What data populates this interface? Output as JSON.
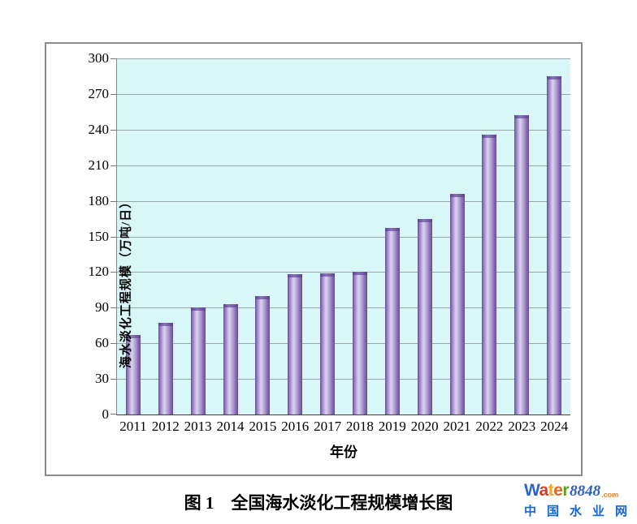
{
  "figure": {
    "caption": "图 1　全国海水淡化工程规模增长图"
  },
  "chart_data": {
    "type": "bar",
    "title": "",
    "categories": [
      "2011",
      "2012",
      "2013",
      "2014",
      "2015",
      "2016",
      "2017",
      "2018",
      "2019",
      "2020",
      "2021",
      "2022",
      "2023",
      "2024"
    ],
    "values": [
      67,
      77,
      90,
      93,
      100,
      118,
      119,
      120,
      157,
      165,
      186,
      236,
      252,
      285
    ],
    "xlabel": "年份",
    "ylabel": "海水淡化工程规模（万吨/日）",
    "ylim": [
      0,
      300
    ],
    "yticks": [
      0,
      30,
      60,
      90,
      120,
      150,
      180,
      210,
      240,
      270,
      300
    ],
    "grid": true,
    "legend": false,
    "colors": {
      "plot_background": "#d9f7f8",
      "gridline": "#98a8a8",
      "bar_dark": "#684e9c",
      "bar_mid": "#9b84c4",
      "bar_light": "#ddd3f0",
      "axis": "#3f3f3f"
    }
  },
  "watermark": {
    "line1_letters": [
      {
        "ch": "W",
        "color": "#2a65cc"
      },
      {
        "ch": "a",
        "color": "#dd3b27"
      },
      {
        "ch": "t",
        "color": "#f2a91e"
      },
      {
        "ch": "e",
        "color": "#e8641e"
      },
      {
        "ch": "r",
        "color": "#56a31f"
      }
    ],
    "number": "8848",
    "number_color": "#2b5fc0",
    "tld": ".com",
    "tld_color": "#e8821f",
    "line2": "中国水业网",
    "line2_color": "#1565d8"
  }
}
